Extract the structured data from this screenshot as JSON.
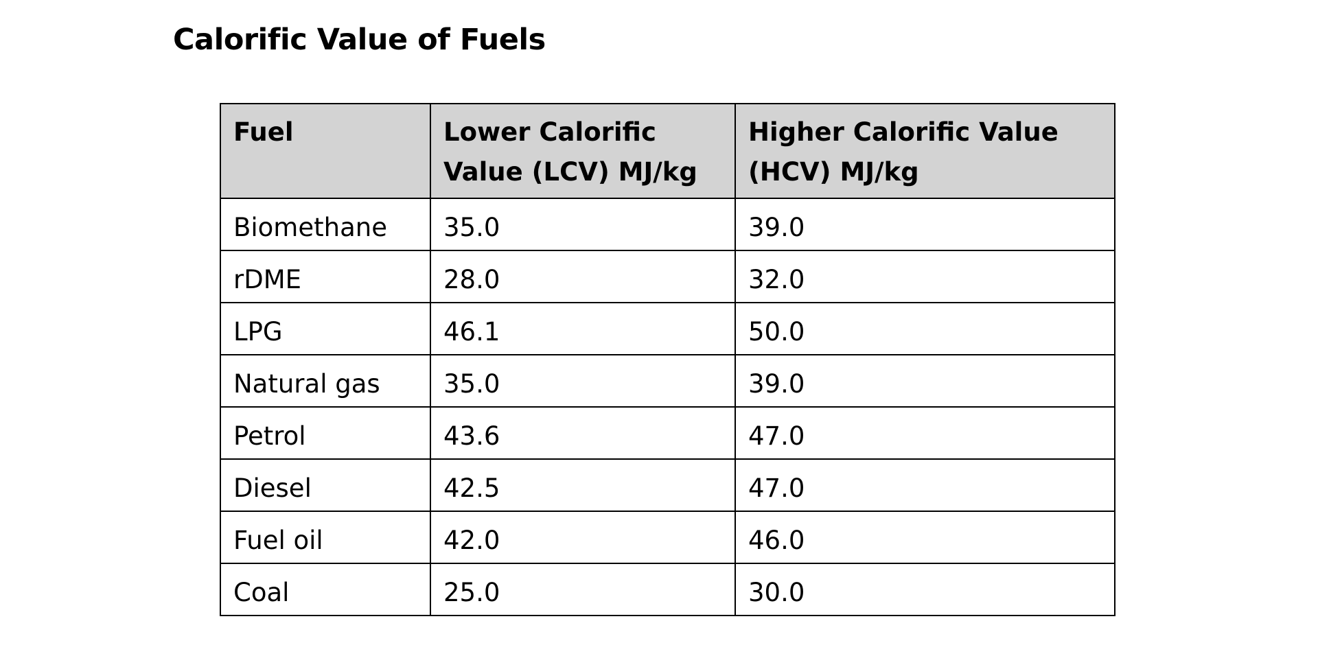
{
  "document": {
    "title": "Calorific Value of Fuels"
  },
  "table": {
    "headers": [
      "Fuel",
      "Lower Calorific Value (LCV) MJ/kg",
      "Higher Calorific Value (HCV) MJ/kg"
    ],
    "rows": [
      [
        "Biomethane",
        "35.0",
        "39.0"
      ],
      [
        "rDME",
        "28.0",
        "32.0"
      ],
      [
        "LPG",
        "46.1",
        "50.0"
      ],
      [
        "Natural gas",
        "35.0",
        "39.0"
      ],
      [
        "Petrol",
        "43.6",
        "47.0"
      ],
      [
        "Diesel",
        "42.5",
        "47.0"
      ],
      [
        "Fuel oil",
        "42.0",
        "46.0"
      ],
      [
        "Coal",
        "25.0",
        "30.0"
      ]
    ]
  }
}
